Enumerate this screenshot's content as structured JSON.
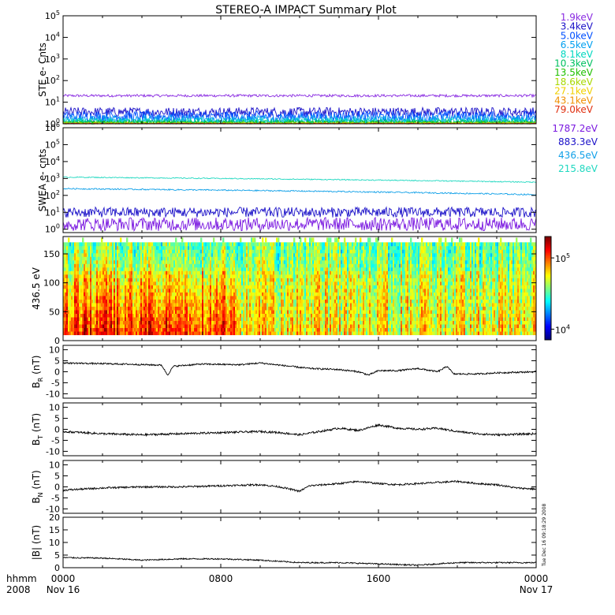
{
  "title": "STEREO-A IMPACT Summary Plot",
  "timestamp": "Tue Dec 16 09:18:29 2008",
  "time_axis": {
    "corner_label_1": "hhmm",
    "corner_label_2": "2008",
    "ticks": [
      {
        "hour": 0,
        "label": "0000",
        "sub": "Nov 16"
      },
      {
        "hour": 8,
        "label": "0800",
        "sub": ""
      },
      {
        "hour": 16,
        "label": "1600",
        "sub": ""
      },
      {
        "hour": 24,
        "label": "0000",
        "sub": "Nov 17"
      }
    ]
  },
  "colorbar": {
    "ticks": [
      {
        "power": 4,
        "base": "10",
        "exp": "4"
      },
      {
        "power": 5,
        "base": "10",
        "exp": "5"
      }
    ],
    "range_log": [
      3.85,
      5.3
    ]
  },
  "chart_data": [
    {
      "id": "ste",
      "type": "line",
      "ylabel": "STE e- Cnts",
      "yscale": "log",
      "ylim_log": [
        0,
        5
      ],
      "yticks": [
        {
          "base": "10",
          "exp": "0",
          "p": 0
        },
        {
          "base": "10",
          "exp": "1",
          "p": 1
        },
        {
          "base": "10",
          "exp": "2",
          "p": 2
        },
        {
          "base": "10",
          "exp": "3",
          "p": 3
        },
        {
          "base": "10",
          "exp": "4",
          "p": 4
        },
        {
          "base": "10",
          "exp": "5",
          "p": 5
        }
      ],
      "series": [
        {
          "name": "1.9keV",
          "color": "#8a2be2",
          "level": 20,
          "noise": 0.06
        },
        {
          "name": "3.4keV",
          "color": "#1a10c8",
          "level": 3.5,
          "noise": 0.22
        },
        {
          "name": "5.0keV",
          "color": "#0050ff",
          "level": 2.2,
          "noise": 0.25
        },
        {
          "name": "6.5keV",
          "color": "#00a0f0",
          "level": 1.6,
          "noise": 0.2
        },
        {
          "name": "8.1keV",
          "color": "#00d8c0",
          "level": 1.3,
          "noise": 0.15
        },
        {
          "name": "10.3keV",
          "color": "#00c060",
          "level": 1.2,
          "noise": 0.1
        },
        {
          "name": "13.5keV",
          "color": "#20c000",
          "level": 1.1,
          "noise": 0.08
        },
        {
          "name": "18.6keV",
          "color": "#a8d800",
          "level": 1.05,
          "noise": 0.06
        },
        {
          "name": "27.1keV",
          "color": "#f0d000",
          "level": 1.0,
          "noise": 0.05
        },
        {
          "name": "43.1keV",
          "color": "#f09000",
          "level": 1.0,
          "noise": 0.04
        },
        {
          "name": "79.0keV",
          "color": "#e03010",
          "level": 1.0,
          "noise": 0.03
        }
      ]
    },
    {
      "id": "swea",
      "type": "line",
      "ylabel": "SWEA e- cnts",
      "yscale": "log",
      "ylim_log": [
        -0.2,
        6
      ],
      "yticks": [
        {
          "base": "10",
          "exp": "0",
          "p": 0
        },
        {
          "base": "10",
          "exp": "1",
          "p": 1
        },
        {
          "base": "10",
          "exp": "2",
          "p": 2
        },
        {
          "base": "10",
          "exp": "3",
          "p": 3
        },
        {
          "base": "10",
          "exp": "4",
          "p": 4
        },
        {
          "base": "10",
          "exp": "5",
          "p": 5
        },
        {
          "base": "10",
          "exp": "6",
          "p": 6
        }
      ],
      "series": [
        {
          "name": "1787.2eV",
          "color": "#7a18e0",
          "level": 2,
          "noise": 0.4
        },
        {
          "name": "883.3eV",
          "color": "#1a10c8",
          "level": 10,
          "noise": 0.3
        },
        {
          "name": "436.5eV",
          "color": "#10a0e8",
          "level": 150,
          "noise": 0.04,
          "start": 250,
          "end": 110
        },
        {
          "name": "215.8eV",
          "color": "#20d8c0",
          "level": 900,
          "noise": 0.03,
          "start": 1200,
          "end": 600
        }
      ]
    },
    {
      "id": "pad",
      "type": "heatmap",
      "ylabel": "436.5 eV",
      "ylim": [
        0,
        180
      ],
      "yticks": [
        0,
        50,
        100,
        150
      ],
      "data_range": [
        10,
        170
      ]
    },
    {
      "id": "br",
      "type": "line",
      "ylabel_main": "B",
      "ylabel_sub": "R",
      "ylabel_unit": "(nT)",
      "ylim": [
        -12,
        12
      ],
      "yticks": [
        -10,
        -5,
        0,
        5,
        10
      ],
      "knots": [
        [
          0,
          4
        ],
        [
          3,
          3.5
        ],
        [
          5,
          3
        ],
        [
          5.3,
          -1.5
        ],
        [
          5.6,
          2.5
        ],
        [
          7,
          3.5
        ],
        [
          9,
          3.2
        ],
        [
          10,
          4
        ],
        [
          11,
          3
        ],
        [
          12.5,
          1.5
        ],
        [
          14,
          1
        ],
        [
          15,
          0
        ],
        [
          15.5,
          -1.5
        ],
        [
          16,
          0.5
        ],
        [
          17,
          0.5
        ],
        [
          18,
          1.5
        ],
        [
          19,
          0
        ],
        [
          19.5,
          2.5
        ],
        [
          19.8,
          -1
        ],
        [
          21,
          -1
        ],
        [
          22,
          -0.5
        ],
        [
          24,
          0
        ]
      ],
      "noise": 0.35
    },
    {
      "id": "bt",
      "type": "line",
      "ylabel_main": "B",
      "ylabel_sub": "T",
      "ylim": [
        -12,
        12
      ],
      "ylabel_unit": "(nT)",
      "yticks": [
        -10,
        -5,
        0,
        5,
        10
      ],
      "knots": [
        [
          0,
          -1
        ],
        [
          1,
          -1.5
        ],
        [
          2,
          -2
        ],
        [
          4,
          -2.5
        ],
        [
          6,
          -2
        ],
        [
          8,
          -1.5
        ],
        [
          10,
          -1
        ],
        [
          11,
          -1.5
        ],
        [
          12,
          -2.5
        ],
        [
          13,
          -1
        ],
        [
          14,
          0.5
        ],
        [
          15,
          -0.5
        ],
        [
          16,
          2
        ],
        [
          17,
          0.5
        ],
        [
          18,
          0
        ],
        [
          19,
          0.5
        ],
        [
          20,
          -1
        ],
        [
          21,
          -2
        ],
        [
          22,
          -2.5
        ],
        [
          24,
          -2
        ]
      ],
      "noise": 0.45
    },
    {
      "id": "bn",
      "type": "line",
      "ylabel_main": "B",
      "ylabel_sub": "N",
      "ylabel_unit": "(nT)",
      "ylim": [
        -12,
        12
      ],
      "yticks": [
        -10,
        -5,
        0,
        5,
        10
      ],
      "knots": [
        [
          0,
          -1.5
        ],
        [
          2,
          -0.5
        ],
        [
          4,
          0
        ],
        [
          6,
          0
        ],
        [
          8,
          0.5
        ],
        [
          10,
          1
        ],
        [
          11,
          0
        ],
        [
          12,
          -2
        ],
        [
          12.5,
          0.5
        ],
        [
          14,
          1.5
        ],
        [
          15,
          2.5
        ],
        [
          16,
          1.5
        ],
        [
          17,
          1
        ],
        [
          18,
          1.5
        ],
        [
          19,
          2
        ],
        [
          20,
          2.5
        ],
        [
          21,
          1.5
        ],
        [
          22,
          1
        ],
        [
          23,
          -0.5
        ],
        [
          24,
          -1
        ]
      ],
      "noise": 0.4
    },
    {
      "id": "bmag",
      "type": "line",
      "ylabel_main": "|B|",
      "ylabel_unit": "(nT)",
      "ylim": [
        0,
        20
      ],
      "yticks": [
        0,
        5,
        10,
        15,
        20
      ],
      "knots": [
        [
          0,
          4
        ],
        [
          2,
          3.8
        ],
        [
          4,
          3
        ],
        [
          6,
          3.5
        ],
        [
          8,
          3.5
        ],
        [
          10,
          3
        ],
        [
          12,
          2
        ],
        [
          14,
          2
        ],
        [
          16,
          1.5
        ],
        [
          18,
          1
        ],
        [
          20,
          2
        ],
        [
          22,
          2
        ],
        [
          24,
          2
        ]
      ],
      "noise": 0.25
    }
  ]
}
